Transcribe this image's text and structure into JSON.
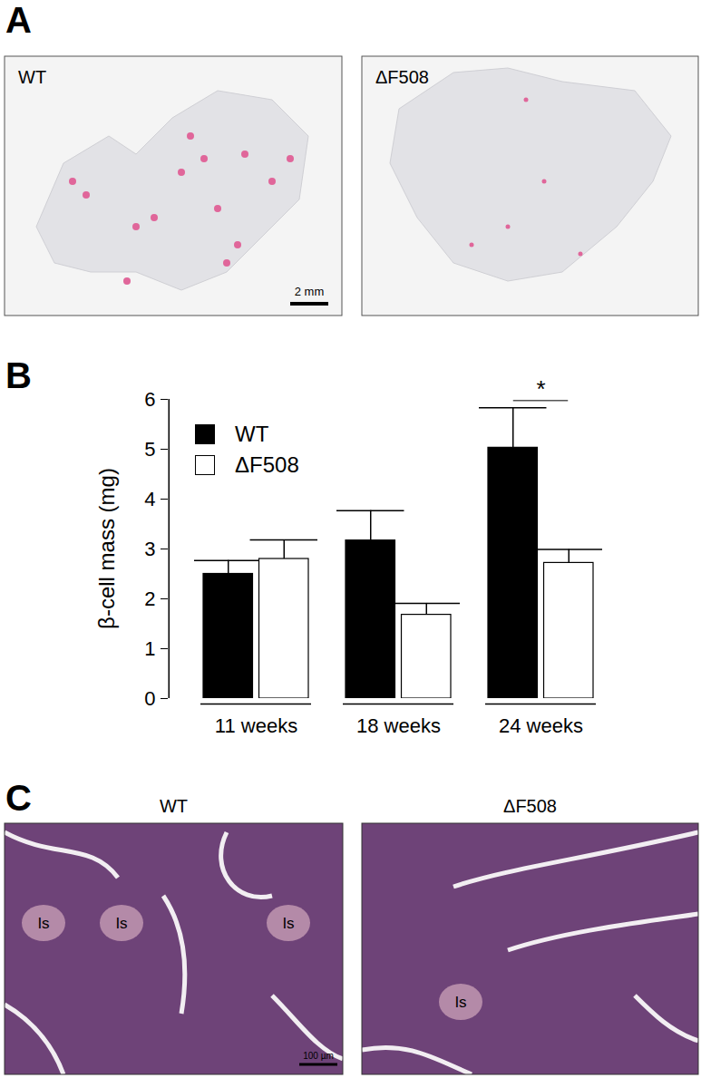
{
  "panel_labels": [
    "A",
    "B",
    "C"
  ],
  "panel_a": {
    "images": [
      {
        "label": "WT"
      },
      {
        "label": "ΔF508"
      }
    ],
    "scale_bar": "2 mm"
  },
  "chart_data": {
    "type": "bar",
    "categories": [
      "11 weeks",
      "18 weeks",
      "24 weeks"
    ],
    "series": [
      {
        "name": "WT",
        "color": "#000000",
        "values": [
          2.5,
          3.17,
          5.03
        ],
        "errors": [
          0.27,
          0.6,
          0.8
        ]
      },
      {
        "name": "ΔF508",
        "color": "#ffffff",
        "values": [
          2.8,
          1.68,
          2.72
        ],
        "errors": [
          0.38,
          0.23,
          0.27
        ]
      }
    ],
    "y_label": "β-cell mass (mg)",
    "ylim": [
      0,
      6
    ],
    "yticks": [
      0,
      1,
      2,
      3,
      4,
      5,
      6
    ],
    "grid": false,
    "legend": "upper left",
    "annotations": [
      {
        "category": "24 weeks",
        "text": "*"
      }
    ]
  },
  "panel_c": {
    "images": [
      {
        "title": "WT",
        "region_labels": [
          "Is",
          "Is",
          "Is"
        ]
      },
      {
        "title": "ΔF508",
        "region_labels": [
          "Is"
        ]
      }
    ],
    "scale_bar": "100 µm"
  }
}
